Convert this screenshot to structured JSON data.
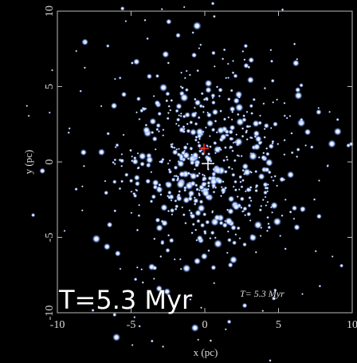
{
  "chart_data": {
    "type": "image",
    "xlabel": "x (pc)",
    "ylabel": "y (pc)",
    "xlim": [
      -10,
      10
    ],
    "ylim": [
      -10,
      10
    ],
    "xticks": [
      -10,
      -5,
      0,
      5,
      10
    ],
    "yticks": [
      -10,
      -5,
      0,
      5,
      10
    ],
    "annotations": [
      "T=5.3 Myr",
      "T= 5.3 Myr"
    ]
  }
}
